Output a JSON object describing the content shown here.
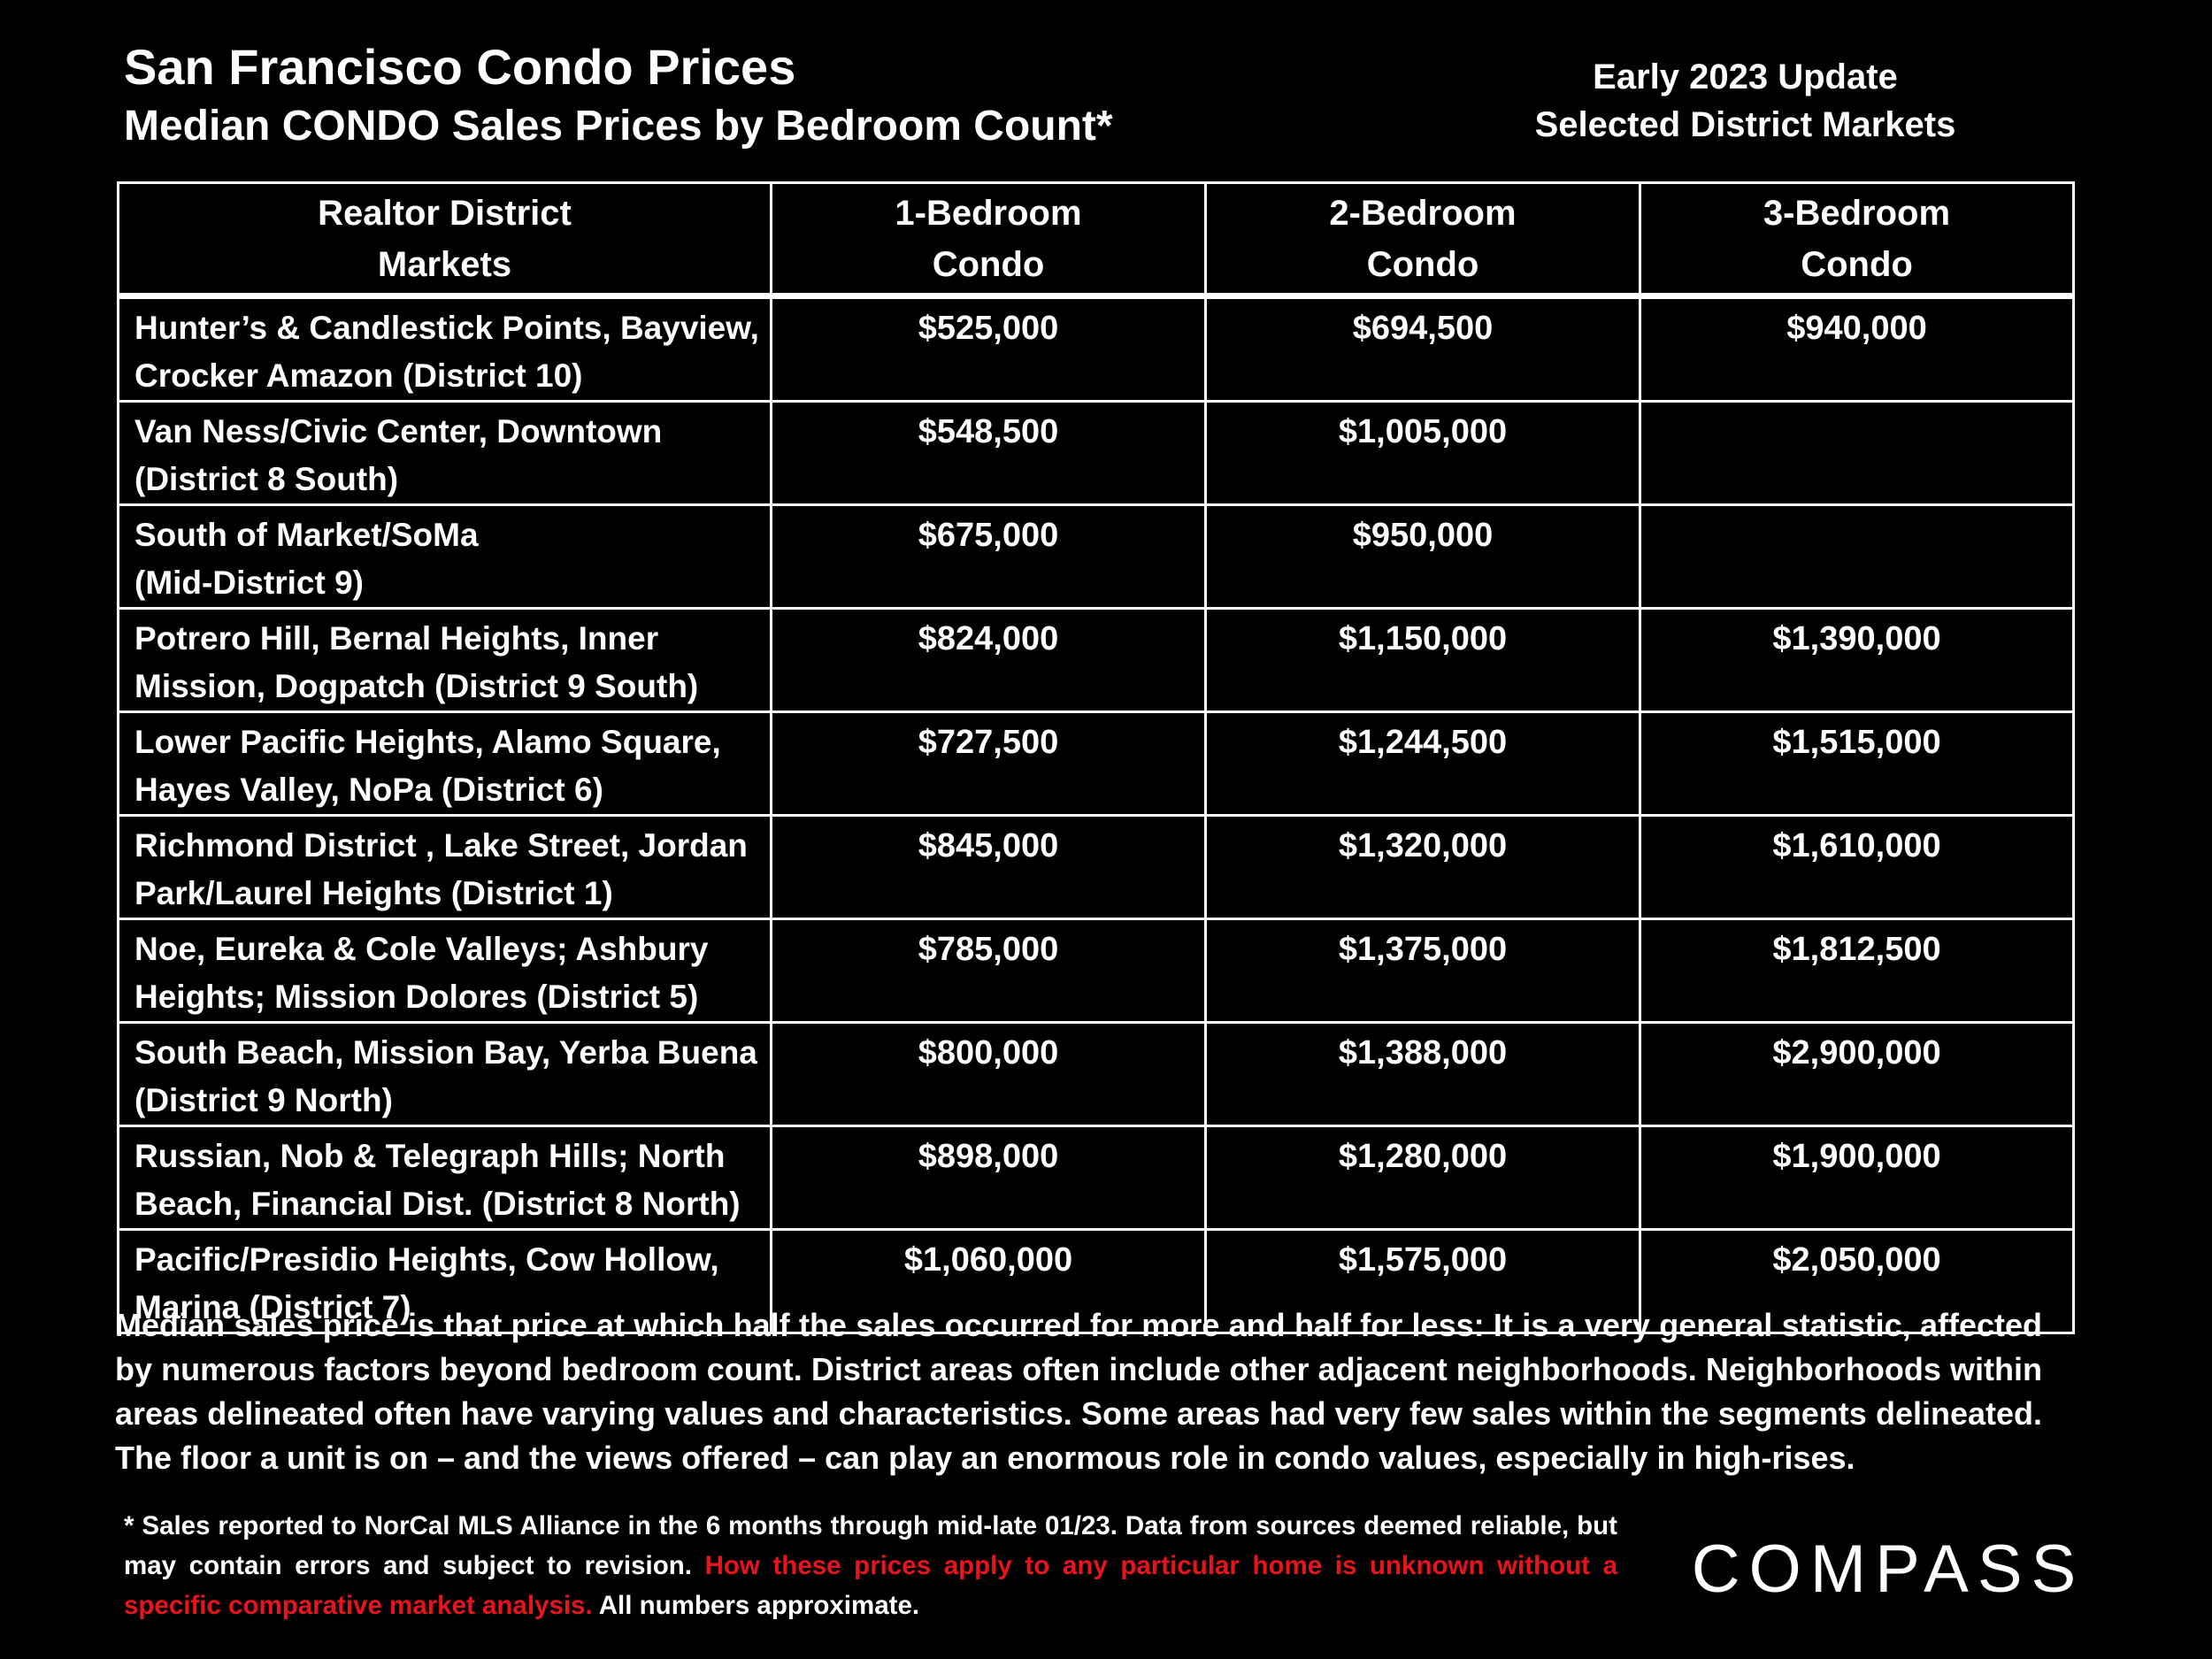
{
  "header": {
    "title": "San Francisco Condo Prices",
    "subtitle": "Median CONDO Sales Prices by Bedroom Count*",
    "update_line1": "Early 2023 Update",
    "update_line2": "Selected District Markets"
  },
  "table": {
    "columns": [
      {
        "line1": "Realtor District",
        "line2": "Markets"
      },
      {
        "line1": "1-Bedroom",
        "line2": "Condo"
      },
      {
        "line1": "2-Bedroom",
        "line2": "Condo"
      },
      {
        "line1": "3-Bedroom",
        "line2": "Condo"
      }
    ],
    "rows": [
      {
        "district_line1": "Hunter’s & Candlestick Points, Bayview,",
        "district_line2": "Crocker Amazon (District 10)",
        "one_bed": "$525,000",
        "two_bed": "$694,500",
        "three_bed": "$940,000"
      },
      {
        "district_line1": "Van Ness/Civic Center, Downtown",
        "district_line2": "(District 8 South)",
        "one_bed": "$548,500",
        "two_bed": "$1,005,000",
        "three_bed": ""
      },
      {
        "district_line1": "South of Market/SoMa",
        "district_line2": "(Mid-District 9)",
        "one_bed": "$675,000",
        "two_bed": "$950,000",
        "three_bed": ""
      },
      {
        "district_line1": "Potrero Hill, Bernal Heights, Inner",
        "district_line2": "Mission, Dogpatch (District 9 South)",
        "one_bed": "$824,000",
        "two_bed": "$1,150,000",
        "three_bed": "$1,390,000"
      },
      {
        "district_line1": "Lower Pacific Heights, Alamo Square,",
        "district_line2": "Hayes Valley, NoPa (District 6)",
        "one_bed": "$727,500",
        "two_bed": "$1,244,500",
        "three_bed": "$1,515,000"
      },
      {
        "district_line1": "Richmond District , Lake Street, Jordan",
        "district_line2": "Park/Laurel Heights (District 1)",
        "one_bed": "$845,000",
        "two_bed": "$1,320,000",
        "three_bed": "$1,610,000"
      },
      {
        "district_line1": "Noe, Eureka & Cole Valleys; Ashbury",
        "district_line2": "Heights; Mission Dolores (District 5)",
        "one_bed": "$785,000",
        "two_bed": "$1,375,000",
        "three_bed": "$1,812,500"
      },
      {
        "district_line1": "South Beach, Mission Bay, Yerba Buena",
        "district_line2": "(District 9 North)",
        "one_bed": "$800,000",
        "two_bed": "$1,388,000",
        "three_bed": "$2,900,000"
      },
      {
        "district_line1": "Russian, Nob & Telegraph Hills; North",
        "district_line2": "Beach, Financial Dist. (District 8 North)",
        "one_bed": "$898,000",
        "two_bed": "$1,280,000",
        "three_bed": "$1,900,000"
      },
      {
        "district_line1": "Pacific/Presidio Heights, Cow Hollow,",
        "district_line2": "Marina (District 7)",
        "one_bed": "$1,060,000",
        "two_bed": "$1,575,000",
        "three_bed": "$2,050,000"
      }
    ]
  },
  "note": "Median sales price is that price at which half the sales occurred for more and half for less: It is a very general statistic, affected by numerous factors beyond bedroom count. District areas often include other adjacent neighborhoods. Neighborhoods within areas delineated often have varying values and characteristics. Some areas had very few sales within the segments delineated. The floor a unit is on – and the views offered – can play an enormous role in condo values, especially in high-rises.",
  "footnote": {
    "part1": "* Sales reported to NorCal MLS Alliance in the 6 months through mid-late 01/23. Data from sources deemed reliable, but may contain errors and subject to revision. ",
    "part_red": "How these prices apply to any particular home is unknown without a specific comparative market analysis.",
    "part2": " All numbers approximate.",
    "red_color": "#e8141c"
  },
  "logo": {
    "text": "COMPASS"
  }
}
